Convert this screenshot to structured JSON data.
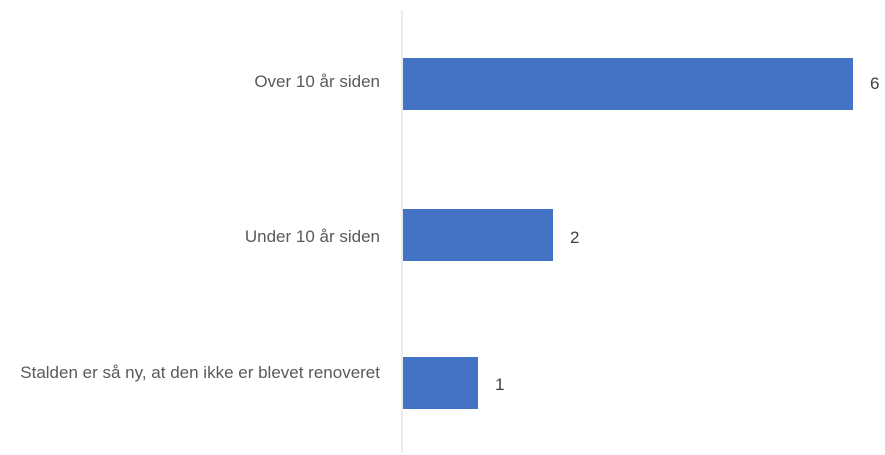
{
  "chart_data": {
    "type": "bar",
    "orientation": "horizontal",
    "categories": [
      "Over 10 år siden",
      "Under 10 år siden",
      "Stalden er så ny, at den ikke er blevet renoveret"
    ],
    "values": [
      6,
      2,
      1
    ],
    "xlim": [
      0,
      6
    ],
    "grid": false,
    "legend": "none",
    "colors": {
      "bar": "#4472C4",
      "axis": "#D9D9D9",
      "label": "#595959"
    }
  }
}
